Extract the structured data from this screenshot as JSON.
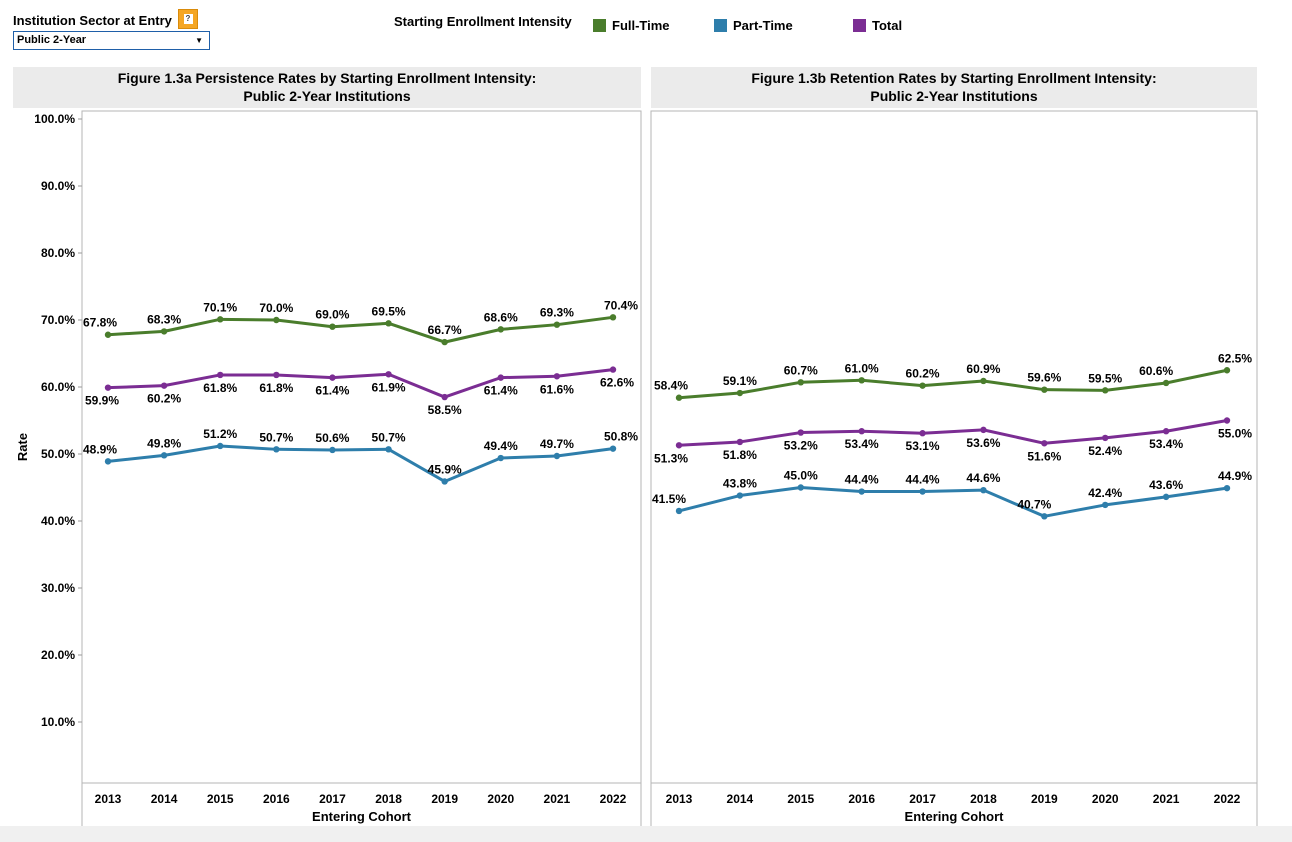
{
  "filter": {
    "label": "Institution Sector at Entry",
    "help_icon": "?",
    "selected": "Public 2-Year"
  },
  "legend": {
    "title": "Starting Enrollment Intensity",
    "items": [
      {
        "label": "Full-Time",
        "color": "#4a7d2c"
      },
      {
        "label": "Part-Time",
        "color": "#2e7eab"
      },
      {
        "label": "Total",
        "color": "#7b2d93"
      }
    ]
  },
  "chart_data": [
    {
      "type": "line",
      "title": "Figure 1.3a Persistence Rates by Starting Enrollment Intensity:",
      "subtitle": "Public 2-Year Institutions",
      "xlabel": "Entering Cohort",
      "ylabel": "Rate",
      "ylim": [
        0,
        100
      ],
      "y_ticks": [
        "10.0%",
        "20.0%",
        "30.0%",
        "40.0%",
        "50.0%",
        "60.0%",
        "70.0%",
        "80.0%",
        "90.0%",
        "100.0%"
      ],
      "categories": [
        "2013",
        "2014",
        "2015",
        "2016",
        "2017",
        "2018",
        "2019",
        "2020",
        "2021",
        "2022"
      ],
      "series": [
        {
          "name": "Full-Time",
          "color": "#4a7d2c",
          "values": [
            67.8,
            68.3,
            70.1,
            70.0,
            69.0,
            69.5,
            66.7,
            68.6,
            69.3,
            70.4
          ],
          "labels": [
            "67.8%",
            "68.3%",
            "70.1%",
            "70.0%",
            "69.0%",
            "69.5%",
            "66.7%",
            "68.6%",
            "69.3%",
            "70.4%"
          ]
        },
        {
          "name": "Part-Time",
          "color": "#2e7eab",
          "values": [
            48.9,
            49.8,
            51.2,
            50.7,
            50.6,
            50.7,
            45.9,
            49.4,
            49.7,
            50.8
          ],
          "labels": [
            "48.9%",
            "49.8%",
            "51.2%",
            "50.7%",
            "50.6%",
            "50.7%",
            "45.9%",
            "49.4%",
            "49.7%",
            "50.8%"
          ]
        },
        {
          "name": "Total",
          "color": "#7b2d93",
          "values": [
            59.9,
            60.2,
            61.8,
            61.8,
            61.4,
            61.9,
            58.5,
            61.4,
            61.6,
            62.6
          ],
          "labels": [
            "59.9%",
            "60.2%",
            "61.8%",
            "61.8%",
            "61.4%",
            "61.9%",
            "58.5%",
            "61.4%",
            "61.6%",
            "62.6%"
          ]
        }
      ]
    },
    {
      "type": "line",
      "title": "Figure 1.3b Retention Rates by Starting Enrollment Intensity:",
      "subtitle": "Public 2-Year Institutions",
      "xlabel": "Entering Cohort",
      "ylabel": "",
      "ylim": [
        0,
        100
      ],
      "y_ticks": [],
      "categories": [
        "2013",
        "2014",
        "2015",
        "2016",
        "2017",
        "2018",
        "2019",
        "2020",
        "2021",
        "2022"
      ],
      "series": [
        {
          "name": "Full-Time",
          "color": "#4a7d2c",
          "values": [
            58.4,
            59.1,
            60.7,
            61.0,
            60.2,
            60.9,
            59.6,
            59.5,
            60.6,
            62.5
          ],
          "labels": [
            "58.4%",
            "59.1%",
            "60.7%",
            "61.0%",
            "60.2%",
            "60.9%",
            "59.6%",
            "59.5%",
            "60.6%",
            "62.5%"
          ]
        },
        {
          "name": "Part-Time",
          "color": "#2e7eab",
          "values": [
            41.5,
            43.8,
            45.0,
            44.4,
            44.4,
            44.6,
            40.7,
            42.4,
            43.6,
            44.9
          ],
          "labels": [
            "41.5%",
            "43.8%",
            "45.0%",
            "44.4%",
            "44.4%",
            "44.6%",
            "40.7%",
            "42.4%",
            "43.6%",
            "44.9%"
          ]
        },
        {
          "name": "Total",
          "color": "#7b2d93",
          "values": [
            51.3,
            51.8,
            53.2,
            53.4,
            53.1,
            53.6,
            51.6,
            52.4,
            53.4,
            55.0
          ],
          "labels": [
            "51.3%",
            "51.8%",
            "53.2%",
            "53.4%",
            "53.1%",
            "53.6%",
            "51.6%",
            "52.4%",
            "53.4%",
            "55.0%"
          ]
        }
      ]
    }
  ]
}
